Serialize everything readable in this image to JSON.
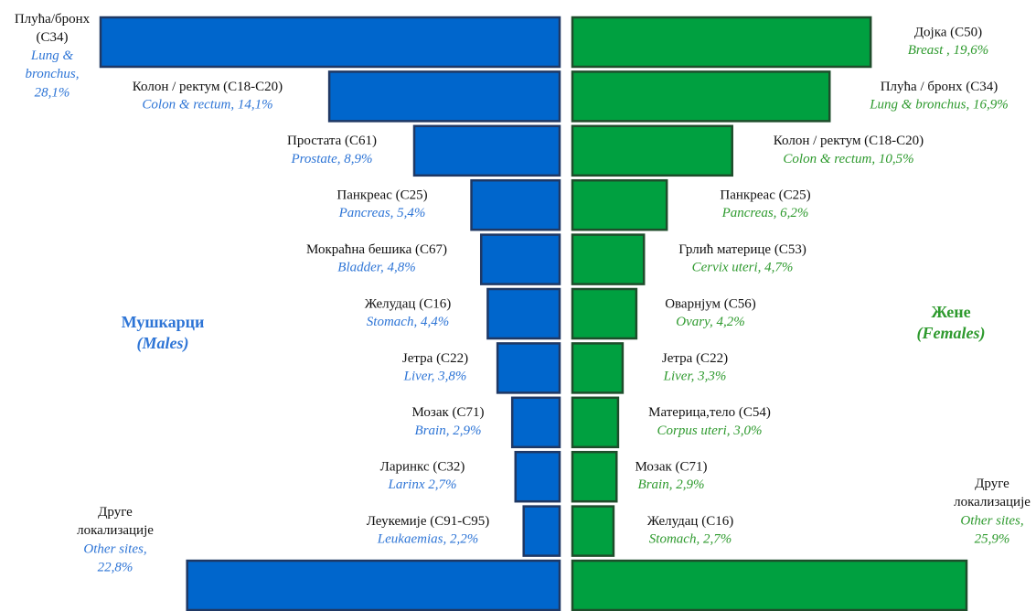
{
  "chart_data": {
    "type": "bar",
    "orientation": "horizontal",
    "groups": [
      {
        "label": "Мушкарци",
        "label_en": "(Males)",
        "color": "#2e75d6"
      },
      {
        "label": "Жене",
        "label_en": "(Females)",
        "color": "#2e9a2e"
      }
    ],
    "series": [
      {
        "name": "Мушкарци",
        "color": "#0066cc",
        "border": "#1f3864",
        "categories": [
          "Плућа/бронх (С34)",
          "Колон / ректум (C18-C20)",
          "Простата (C61)",
          "Панкреас (C25)",
          "Мокраћна бешика (C67)",
          "Желудац (C16)",
          "Јетра (C22)",
          "Мозак (C71)",
          "Ларинкс (C32)",
          "Леукемије (C91-C95)",
          "Друге локализације"
        ],
        "categories_en": [
          "Lung & bronchus,",
          "Colon & rectum,",
          "Prostate,",
          "Pancreas,",
          "Bladder,",
          "Stomach,",
          "Liver,",
          "Brain,",
          "Larinx",
          "Leukaemias,",
          "Other sites,"
        ],
        "values": [
          28.1,
          14.1,
          8.9,
          5.4,
          4.8,
          4.4,
          3.8,
          2.9,
          2.7,
          2.2,
          22.8
        ],
        "value_labels": [
          "28,1%",
          "14,1%",
          "8,9%",
          "5,4%",
          "4,8%",
          "4,4%",
          "3,8%",
          "2,9%",
          "2,7%",
          "2,2%",
          "22,8%"
        ]
      },
      {
        "name": "Жене",
        "color": "#00a040",
        "border": "#1e4d2b",
        "categories": [
          "Дојка (C50)",
          "Плућа / бронх (C34)",
          "Колон / ректум (C18-C20)",
          "Панкреас (C25)",
          "Грлић материце (C53)",
          "Оварнјум (C56)",
          "Јетра (C22)",
          "Материца,тело (C54)",
          "Мозак (C71)",
          "Желудац (C16)",
          "Друге локализације"
        ],
        "categories_en": [
          "Breast ,",
          "Lung & bronchus,",
          "Colon & rectum,",
          "Pancreas,",
          "Cervix uteri,",
          "Ovary,",
          "Liver,",
          "Corpus uteri,",
          "Brain,",
          "Stomach,",
          "Other sites,"
        ],
        "values": [
          19.6,
          16.9,
          10.5,
          6.2,
          4.7,
          4.2,
          3.3,
          3.0,
          2.9,
          2.7,
          25.9
        ],
        "value_labels": [
          "19,6%",
          "16,9%",
          "10,5%",
          "6,2%",
          "4,7%",
          "4,2%",
          "3,3%",
          "3,0%",
          "2,9%",
          "2,7%",
          "25,9%"
        ]
      }
    ]
  }
}
